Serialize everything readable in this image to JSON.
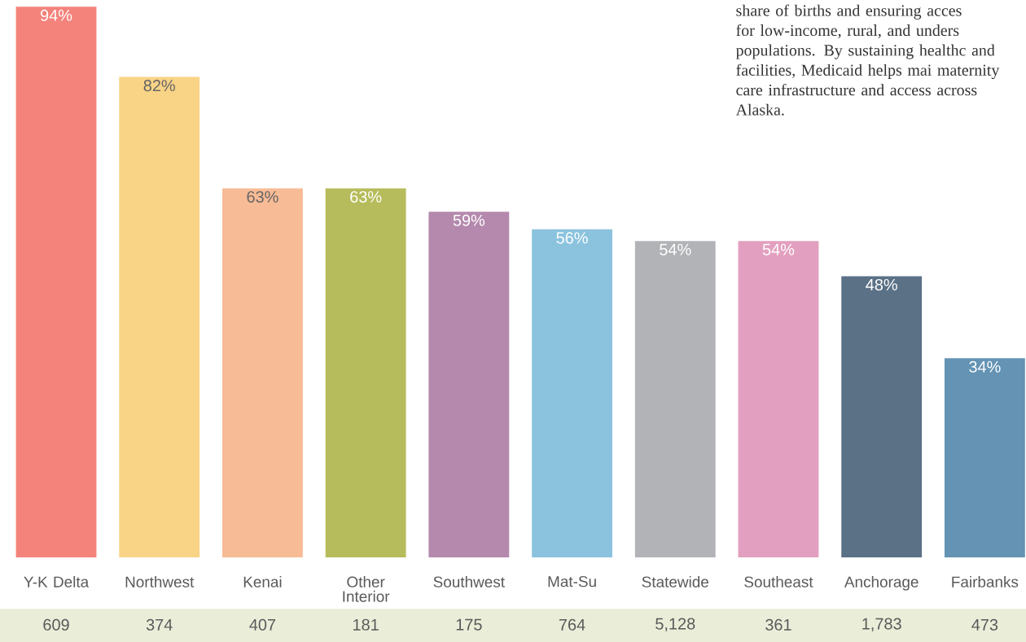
{
  "chart_data": {
    "type": "bar",
    "categories": [
      "Y-K Delta",
      "Northwest",
      "Kenai",
      "Other Interior",
      "Southwest",
      "Mat-Su",
      "Statewide",
      "Southeast",
      "Anchorage",
      "Fairbanks"
    ],
    "values": [
      94,
      82,
      63,
      63,
      59,
      56,
      54,
      54,
      48,
      34
    ],
    "colors": [
      "#f4837b",
      "#f9d386",
      "#f7bb95",
      "#b6bc5b",
      "#b489ad",
      "#8bc3de",
      "#b2b3b7",
      "#e39fbf",
      "#5b7186",
      "#6493b4"
    ],
    "value_labels": [
      "94%",
      "82%",
      "63%",
      "63%",
      "59%",
      "56%",
      "54%",
      "54%",
      "48%",
      "34%"
    ],
    "annotations": [
      "share of births and ensuring acces for low-income, rural, and unders populations. By sustaining healthc and facilities, Medicaid helps mai maternity care infrastructure and access across Alaska.",
      "609",
      "374",
      "407",
      "181",
      "175",
      "764",
      "5,128",
      "361",
      "1,783",
      "473"
    ]
  }
}
